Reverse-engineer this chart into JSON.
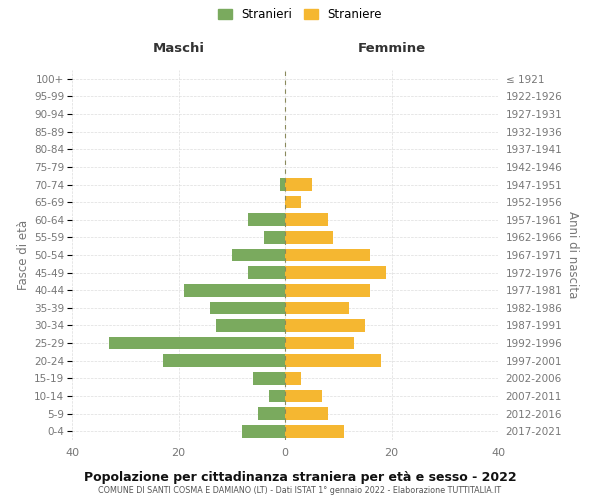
{
  "age_groups": [
    "0-4",
    "5-9",
    "10-14",
    "15-19",
    "20-24",
    "25-29",
    "30-34",
    "35-39",
    "40-44",
    "45-49",
    "50-54",
    "55-59",
    "60-64",
    "65-69",
    "70-74",
    "75-79",
    "80-84",
    "85-89",
    "90-94",
    "95-99",
    "100+"
  ],
  "birth_years": [
    "2017-2021",
    "2012-2016",
    "2007-2011",
    "2002-2006",
    "1997-2001",
    "1992-1996",
    "1987-1991",
    "1982-1986",
    "1977-1981",
    "1972-1976",
    "1967-1971",
    "1962-1966",
    "1957-1961",
    "1952-1956",
    "1947-1951",
    "1942-1946",
    "1937-1941",
    "1932-1936",
    "1927-1931",
    "1922-1926",
    "≤ 1921"
  ],
  "maschi": [
    8,
    5,
    3,
    6,
    23,
    33,
    13,
    14,
    19,
    7,
    10,
    4,
    7,
    0,
    1,
    0,
    0,
    0,
    0,
    0,
    0
  ],
  "femmine": [
    11,
    8,
    7,
    3,
    18,
    13,
    15,
    12,
    16,
    19,
    16,
    9,
    8,
    3,
    5,
    0,
    0,
    0,
    0,
    0,
    0
  ],
  "color_maschi": "#7aaa5e",
  "color_femmine": "#f5b731",
  "xlim": 40,
  "title": "Popolazione per cittadinanza straniera per età e sesso - 2022",
  "subtitle": "COMUNE DI SANTI COSMA E DAMIANO (LT) - Dati ISTAT 1° gennaio 2022 - Elaborazione TUTTITALIA.IT",
  "ylabel_left": "Fasce di età",
  "ylabel_right": "Anni di nascita",
  "legend_maschi": "Stranieri",
  "legend_femmine": "Straniere",
  "header_maschi": "Maschi",
  "header_femmine": "Femmine",
  "background_color": "#ffffff",
  "grid_color": "#dddddd",
  "label_color": "#777777"
}
